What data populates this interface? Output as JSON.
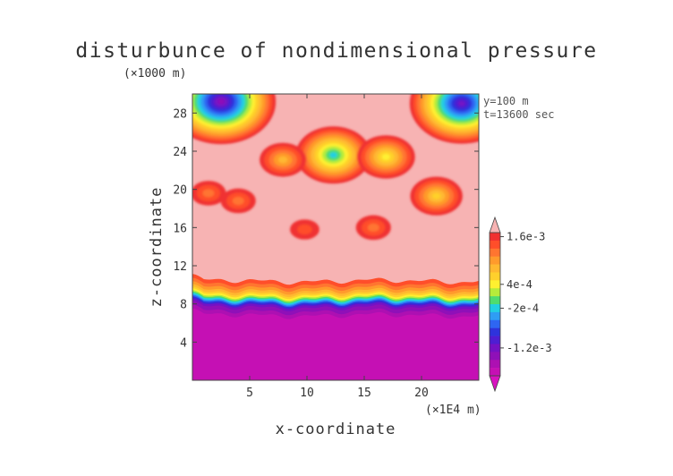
{
  "chart_data": {
    "type": "heatmap",
    "title": "disturbunce of nondimensional pressure",
    "xlabel": "x-coordinate",
    "ylabel": "z-coordinate",
    "x_unit": "(×1E4 m)",
    "z_unit": "(×1000 m)",
    "annotations": [
      "y=100 m",
      "t=13600 sec"
    ],
    "xlim": [
      0,
      25
    ],
    "ylim": [
      0,
      30
    ],
    "x_ticks": [
      5,
      10,
      15,
      20
    ],
    "y_ticks": [
      4,
      8,
      12,
      16,
      20,
      24,
      28
    ],
    "colorbar": {
      "labels": [
        {
          "text": "1.6e-3",
          "value": 0.0016
        },
        {
          "text": "4e-4",
          "value": 0.0004
        },
        {
          "text": "-2e-4",
          "value": -0.0002
        },
        {
          "text": "-1.2e-3",
          "value": -0.0012
        }
      ],
      "levels": [
        0.0018,
        0.0016,
        0.0014,
        0.0012,
        0.001,
        0.0008,
        0.0006,
        0.0004,
        0.0002,
        0.0,
        -0.0002,
        -0.0004,
        -0.0006,
        -0.0008,
        -0.001,
        -0.0012,
        -0.0014,
        -0.0016,
        -0.0018
      ],
      "colors": [
        "#f7b3b3",
        "#f03030",
        "#ff4e2a",
        "#ff7530",
        "#ff9a2c",
        "#ffb830",
        "#ffd02c",
        "#fff030",
        "#b5ec3b",
        "#4fdc6f",
        "#22cfe2",
        "#2f9df4",
        "#2e66f2",
        "#2e33dc",
        "#4e1ed2",
        "#7412c4",
        "#8f10b8",
        "#ad10b2",
        "#c510b4",
        "#d812c0"
      ]
    },
    "background_value": 0.0018,
    "lower_layer": {
      "z_top": 7.8,
      "value": -0.0018
    },
    "features": [
      {
        "kind": "blob",
        "x": 12.3,
        "z": 23.6,
        "peak": -0.0002
      },
      {
        "kind": "blob",
        "x": 16.9,
        "z": 23.4,
        "peak": 0.0004
      },
      {
        "kind": "blob",
        "x": 7.9,
        "z": 23.1,
        "peak": 0.0008
      },
      {
        "kind": "blob",
        "x": 21.3,
        "z": 19.3,
        "peak": 0.0006
      },
      {
        "kind": "blob",
        "x": 1.4,
        "z": 19.6,
        "peak": 0.0012
      },
      {
        "kind": "blob",
        "x": 4.0,
        "z": 18.8,
        "peak": 0.0012
      },
      {
        "kind": "blob",
        "x": 15.8,
        "z": 16.0,
        "peak": 0.0012
      },
      {
        "kind": "blob",
        "x": 9.8,
        "z": 15.8,
        "peak": 0.0014
      },
      {
        "kind": "blob",
        "x": 2.5,
        "z": 29.2,
        "peak": -0.0014
      },
      {
        "kind": "blob",
        "x": 23.5,
        "z": 29.0,
        "peak": -0.0012
      }
    ]
  }
}
